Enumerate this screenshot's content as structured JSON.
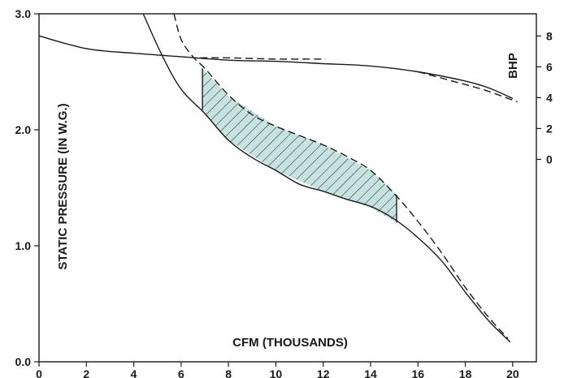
{
  "chart_data": {
    "type": "line",
    "xlabel": "CFM (THOUSANDS)",
    "ylabel": "STATIC PRESSURE (IN W.G.)",
    "y2label": "BHP",
    "xlim": [
      0,
      21
    ],
    "ylim": [
      0,
      3
    ],
    "x_ticks": [
      0,
      2,
      4,
      6,
      8,
      10,
      12,
      14,
      16,
      18,
      20
    ],
    "y_ticks": [
      {
        "value": 0,
        "label": "0.0"
      },
      {
        "value": 1,
        "label": "1.0"
      },
      {
        "value": 2,
        "label": "2.0"
      },
      {
        "value": 3,
        "label": "3.0"
      }
    ],
    "y2_ticks": [
      {
        "value": 0,
        "label": "0"
      },
      {
        "value": 2,
        "label": "2"
      },
      {
        "value": 4,
        "label": "4"
      },
      {
        "value": 6,
        "label": "6"
      },
      {
        "value": 8,
        "label": "8"
      }
    ],
    "y2_map": {
      "bhp_at_zero": 0,
      "bhp_zero_at_pressure": 1.745,
      "pressure_per_bhp": 0.133
    },
    "grid": false,
    "shaded_region": {
      "x_from": 6.9,
      "x_to": 15.1,
      "fill": "#c7e3e1",
      "hatch": "diagonal",
      "upper": [
        [
          6.9,
          2.53
        ],
        [
          8,
          2.29
        ],
        [
          10,
          2.03
        ],
        [
          12,
          1.87
        ],
        [
          14,
          1.65
        ],
        [
          15.1,
          1.44
        ]
      ],
      "lower": [
        [
          6.9,
          2.17
        ],
        [
          8,
          1.91
        ],
        [
          10,
          1.65
        ],
        [
          12,
          1.47
        ],
        [
          14,
          1.33
        ],
        [
          15.1,
          1.2
        ]
      ]
    },
    "series": [
      {
        "style": "solid",
        "color": "#1a1a1a",
        "points": [
          [
            0,
            2.81
          ],
          [
            2,
            2.7
          ],
          [
            4,
            2.66
          ],
          [
            6,
            2.63
          ],
          [
            8,
            2.6
          ],
          [
            10,
            2.59
          ],
          [
            12,
            2.57
          ],
          [
            14,
            2.55
          ],
          [
            16,
            2.5
          ],
          [
            18,
            2.42
          ],
          [
            19,
            2.36
          ],
          [
            20,
            2.27
          ]
        ]
      },
      {
        "style": "dashed",
        "color": "#1a1a1a",
        "points": [
          [
            6.8,
            2.62
          ],
          [
            8,
            2.62
          ],
          [
            10,
            2.61
          ],
          [
            12.1,
            2.61
          ]
        ]
      },
      {
        "style": "dashed",
        "color": "#1a1a1a",
        "points": [
          [
            16,
            2.5
          ],
          [
            18,
            2.39
          ],
          [
            19,
            2.33
          ],
          [
            20.2,
            2.24
          ]
        ]
      },
      {
        "style": "solid",
        "color": "#1a1a1a",
        "points": [
          [
            4.4,
            3.0
          ],
          [
            5.2,
            2.64
          ],
          [
            6,
            2.35
          ],
          [
            7,
            2.14
          ],
          [
            8,
            1.91
          ],
          [
            9,
            1.76
          ],
          [
            10,
            1.65
          ],
          [
            11,
            1.53
          ],
          [
            12,
            1.47
          ],
          [
            13,
            1.4
          ],
          [
            14,
            1.34
          ],
          [
            15,
            1.23
          ],
          [
            16,
            1.07
          ],
          [
            17,
            0.87
          ],
          [
            18,
            0.6
          ],
          [
            19,
            0.35
          ],
          [
            19.9,
            0.17
          ]
        ]
      },
      {
        "style": "dashed",
        "color": "#1a1a1a",
        "points": [
          [
            5.7,
            3.0
          ],
          [
            6,
            2.78
          ],
          [
            6.5,
            2.63
          ],
          [
            7,
            2.53
          ],
          [
            8,
            2.3
          ],
          [
            9,
            2.13
          ],
          [
            10,
            2.03
          ],
          [
            11,
            1.95
          ],
          [
            12,
            1.87
          ],
          [
            13,
            1.77
          ],
          [
            14,
            1.65
          ],
          [
            15,
            1.45
          ],
          [
            16,
            1.21
          ],
          [
            17,
            0.94
          ],
          [
            18,
            0.64
          ],
          [
            19,
            0.38
          ],
          [
            19.8,
            0.2
          ]
        ]
      }
    ]
  }
}
